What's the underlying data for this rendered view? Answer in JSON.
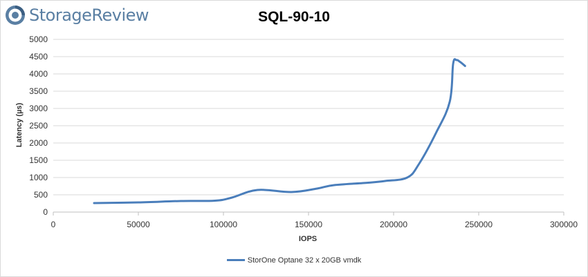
{
  "brand": {
    "name": "StorageReview",
    "icon": "storagereview-logo-icon",
    "color": "#5a7fa3"
  },
  "chart_data": {
    "type": "line",
    "title": "SQL-90-10",
    "xlabel": "IOPS",
    "ylabel": "Latency (µs)",
    "xlim": [
      0,
      300000
    ],
    "ylim": [
      0,
      5000
    ],
    "x_ticks": [
      "0",
      "50000",
      "100000",
      "150000",
      "200000",
      "250000",
      "300000"
    ],
    "y_ticks": [
      "0",
      "500",
      "1000",
      "1500",
      "2000",
      "2500",
      "3000",
      "3500",
      "4000",
      "4500",
      "5000"
    ],
    "grid": true,
    "legend_position": "bottom",
    "series": [
      {
        "name": "StorOne Optane 32 x 20GB vmdk",
        "color": "#4a7ebb",
        "x": [
          24000,
          50000,
          75000,
          95000,
          105000,
          120000,
          140000,
          155000,
          165000,
          185000,
          195000,
          208000,
          215000,
          225000,
          233000,
          235000,
          237000,
          239000,
          242000
        ],
        "y": [
          260,
          280,
          320,
          330,
          420,
          640,
          580,
          680,
          780,
          850,
          900,
          1000,
          1400,
          2300,
          3200,
          4300,
          4400,
          4350,
          4230
        ]
      }
    ]
  }
}
